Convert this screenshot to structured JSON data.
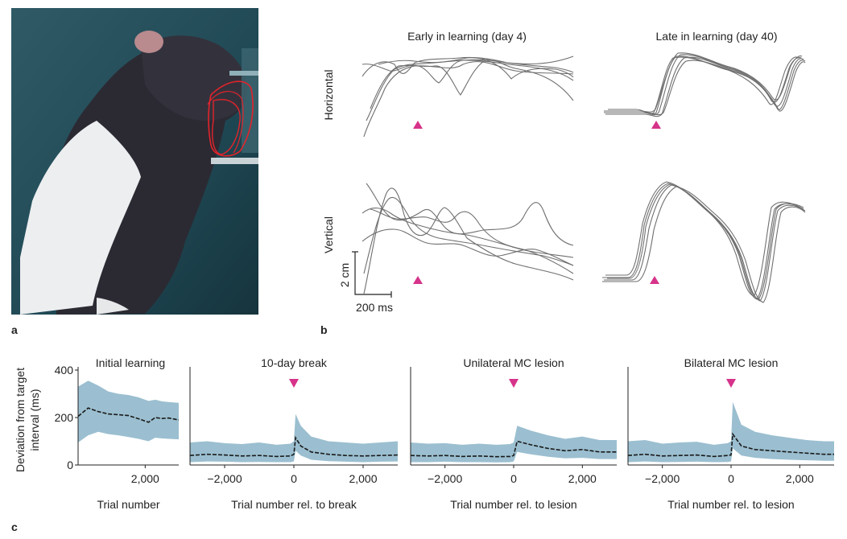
{
  "panel_labels": {
    "a": "a",
    "b": "b",
    "c": "c"
  },
  "panel_b": {
    "titles": [
      "Early in learning (day 4)",
      "Late in learning (day 40)"
    ],
    "row_labels": [
      "Horizontal",
      "Vertical"
    ],
    "scale_bar": {
      "vertical": "2 cm",
      "horizontal": "200 ms"
    },
    "marker_color": "#d6338a",
    "trace_color": "#6f6f6f"
  },
  "chart_data": [
    {
      "type": "area",
      "title": "Initial learning",
      "xlabel": "Trial number",
      "ylabel": "Deviation from target interval (ms)",
      "xlim": [
        0,
        3000
      ],
      "ylim": [
        0,
        400
      ],
      "yticks": [
        0,
        200,
        400
      ],
      "xticks": [
        2000
      ],
      "xticklabels": [
        "2,000"
      ],
      "event_marker": null,
      "band_color": "#9bbfd0",
      "line_color": "#1a1a1a",
      "x": [
        0,
        300,
        600,
        900,
        1200,
        1500,
        1800,
        2100,
        2300,
        2500,
        2700,
        3000
      ],
      "mean": [
        205,
        240,
        225,
        215,
        212,
        208,
        195,
        180,
        200,
        196,
        198,
        190
      ],
      "lower": [
        95,
        125,
        140,
        130,
        125,
        118,
        110,
        100,
        115,
        112,
        110,
        108
      ],
      "upper": [
        330,
        355,
        335,
        310,
        300,
        295,
        285,
        270,
        275,
        268,
        265,
        262
      ]
    },
    {
      "type": "area",
      "title": "10-day break",
      "xlabel": "Trial number rel. to break",
      "xlim": [
        -3000,
        3000
      ],
      "ylim": [
        0,
        400
      ],
      "xticks": [
        -2000,
        0,
        2000
      ],
      "xticklabels": [
        "−2,000",
        "0",
        "2,000"
      ],
      "event_marker": 0,
      "band_color": "#9bbfd0",
      "line_color": "#1a1a1a",
      "x": [
        -3000,
        -2500,
        -2000,
        -1500,
        -1000,
        -500,
        -100,
        0,
        50,
        200,
        500,
        1000,
        1500,
        2000,
        2500,
        3000
      ],
      "mean": [
        40,
        45,
        42,
        38,
        40,
        36,
        38,
        45,
        115,
        80,
        55,
        45,
        40,
        38,
        40,
        42
      ],
      "lower": [
        12,
        15,
        14,
        12,
        13,
        12,
        12,
        15,
        60,
        40,
        22,
        16,
        14,
        12,
        14,
        15
      ],
      "upper": [
        95,
        100,
        92,
        88,
        95,
        85,
        90,
        100,
        215,
        165,
        120,
        100,
        95,
        90,
        95,
        100
      ]
    },
    {
      "type": "area",
      "title": "Unilateral MC lesion",
      "xlabel": "Trial number rel. to lesion",
      "xlim": [
        -3000,
        3000
      ],
      "ylim": [
        0,
        400
      ],
      "xticks": [
        -2000,
        0,
        2000
      ],
      "xticklabels": [
        "−2,000",
        "0",
        "2,000"
      ],
      "event_marker": 0,
      "band_color": "#9bbfd0",
      "line_color": "#1a1a1a",
      "x": [
        -3000,
        -2500,
        -2000,
        -1500,
        -1000,
        -500,
        -100,
        0,
        100,
        500,
        1000,
        1500,
        2000,
        2500,
        3000
      ],
      "mean": [
        40,
        38,
        40,
        36,
        38,
        35,
        36,
        40,
        100,
        85,
        70,
        60,
        65,
        55,
        55
      ],
      "lower": [
        12,
        12,
        14,
        12,
        12,
        11,
        12,
        15,
        55,
        45,
        35,
        28,
        30,
        25,
        25
      ],
      "upper": [
        95,
        90,
        92,
        85,
        90,
        85,
        88,
        95,
        165,
        145,
        125,
        110,
        120,
        105,
        105
      ]
    },
    {
      "type": "area",
      "title": "Bilateral MC lesion",
      "xlabel": "Trial number rel. to lesion",
      "xlim": [
        -3000,
        3000
      ],
      "ylim": [
        0,
        400
      ],
      "xticks": [
        -2000,
        0,
        2000
      ],
      "xticklabels": [
        "−2,000",
        "0",
        "2,000"
      ],
      "event_marker": 0,
      "band_color": "#9bbfd0",
      "line_color": "#1a1a1a",
      "x": [
        -3000,
        -2500,
        -2000,
        -1500,
        -1000,
        -500,
        -100,
        0,
        50,
        300,
        700,
        1200,
        1700,
        2200,
        2700,
        3000
      ],
      "mean": [
        40,
        45,
        38,
        40,
        42,
        36,
        40,
        42,
        130,
        80,
        65,
        60,
        55,
        50,
        45,
        45
      ],
      "lower": [
        12,
        15,
        12,
        13,
        14,
        12,
        13,
        15,
        70,
        40,
        30,
        25,
        22,
        20,
        18,
        18
      ],
      "upper": [
        100,
        105,
        90,
        95,
        98,
        85,
        92,
        100,
        265,
        170,
        140,
        125,
        115,
        105,
        100,
        100
      ]
    }
  ]
}
